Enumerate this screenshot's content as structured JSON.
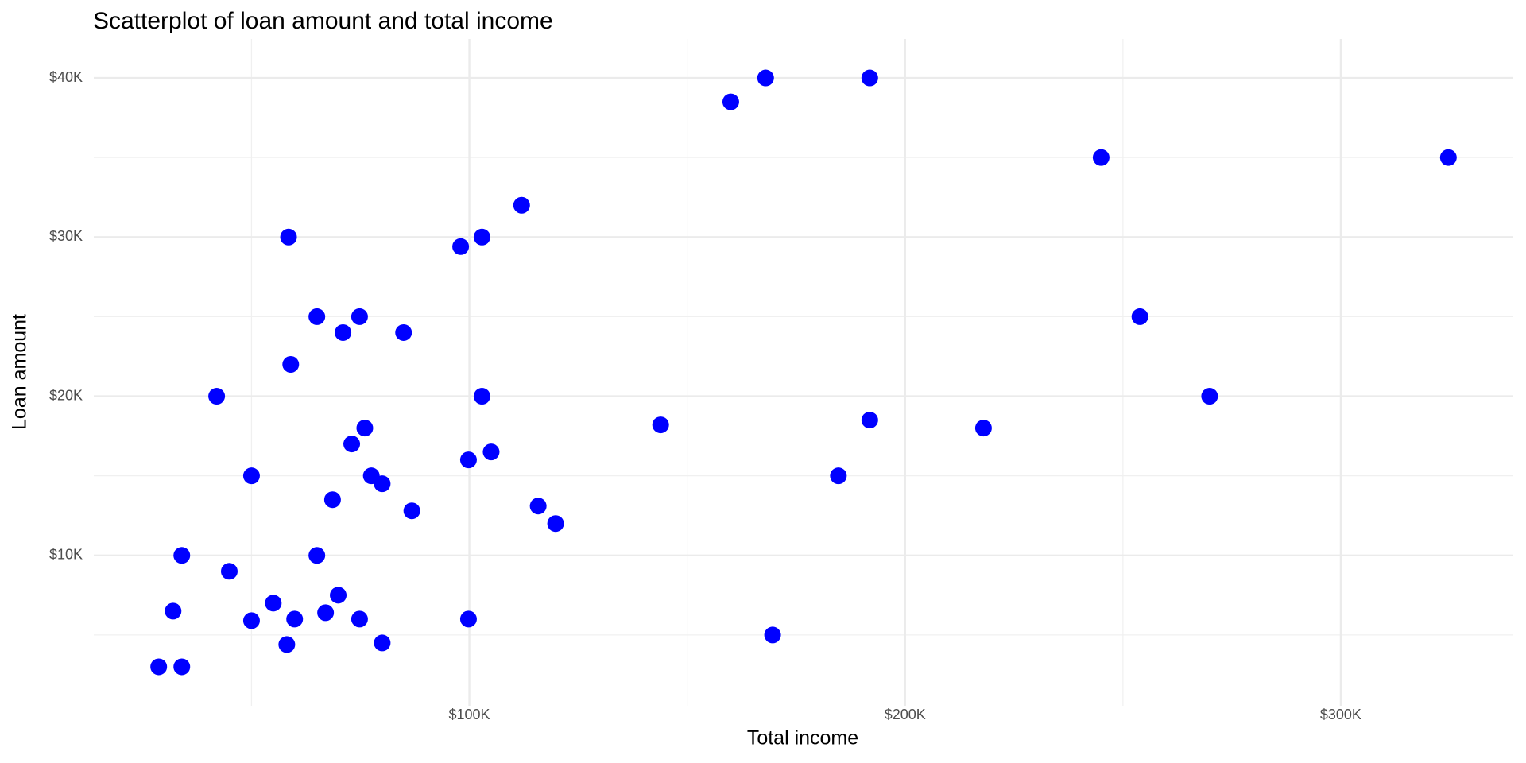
{
  "chart_data": {
    "type": "scatter",
    "title": "Scatterplot of loan amount and total income",
    "x_label": "Total income",
    "y_label": "Loan amount",
    "color": "#0000ff",
    "grid": true,
    "xlim": [
      13800,
      339600
    ],
    "ylim": [
      1150,
      41850
    ],
    "xticks": [
      {
        "value": 100000,
        "label": "$100K"
      },
      {
        "value": 200000,
        "label": "$200K"
      },
      {
        "value": 300000,
        "label": "$300K"
      }
    ],
    "yticks": [
      {
        "value": 10000,
        "label": "$10K"
      },
      {
        "value": 20000,
        "label": "$20K"
      },
      {
        "value": 30000,
        "label": "$30K"
      },
      {
        "value": 40000,
        "label": "$40K"
      }
    ],
    "xminor": [
      50000,
      150000,
      250000
    ],
    "yminor": [
      5000,
      15000,
      25000,
      35000
    ],
    "x": [
      28700,
      34000,
      32000,
      34000,
      42000,
      44900,
      50000,
      50000,
      55000,
      58100,
      58500,
      59000,
      59900,
      65000,
      65000,
      67000,
      68600,
      69900,
      71000,
      73000,
      74800,
      74800,
      76000,
      77500,
      80000,
      80000,
      84900,
      86800,
      98000,
      99800,
      99800,
      102900,
      102900,
      105000,
      112000,
      115800,
      119800,
      143900,
      160000,
      168000,
      169600,
      184700,
      191900,
      191900,
      218000,
      245000,
      253900,
      269900,
      324700
    ],
    "values": [
      3000,
      3000,
      6500,
      10000,
      20000,
      9000,
      15000,
      5900,
      7000,
      4400,
      30000,
      22000,
      6000,
      25000,
      10000,
      6400,
      13500,
      7500,
      24000,
      17000,
      25000,
      6000,
      18000,
      15000,
      14500,
      4500,
      24000,
      12800,
      29400,
      16000,
      6000,
      30000,
      20000,
      16500,
      32000,
      13100,
      12000,
      18200,
      38500,
      40000,
      5000,
      15000,
      40000,
      18500,
      18000,
      35000,
      25000,
      20000,
      35000
    ]
  }
}
